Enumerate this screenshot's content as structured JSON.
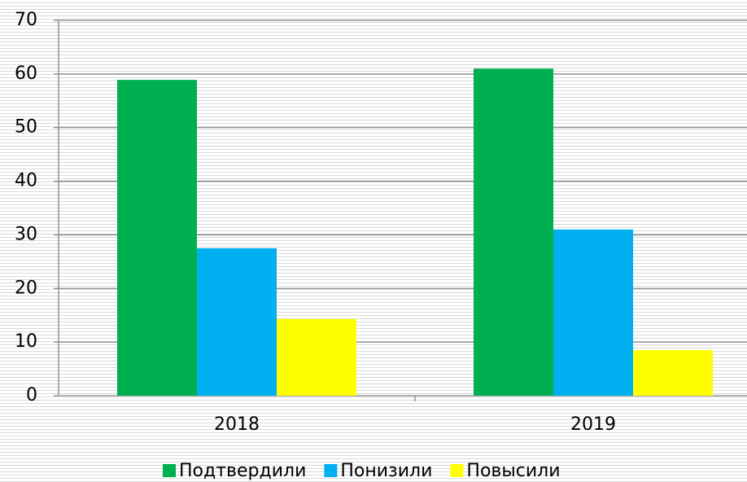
{
  "chart_data": {
    "type": "bar",
    "categories": [
      "2018",
      "2019"
    ],
    "series": [
      {
        "name": "Подтвердили",
        "color": "#00b050",
        "values": [
          58.9,
          61.0
        ]
      },
      {
        "name": "Понизили",
        "color": "#00b0f0",
        "values": [
          27.5,
          31.0
        ]
      },
      {
        "name": "Повысили",
        "color": "#ffff00",
        "values": [
          14.3,
          8.5
        ]
      }
    ],
    "ylim": [
      0,
      70
    ],
    "yticks": [
      0,
      10,
      20,
      30,
      40,
      50,
      60,
      70
    ],
    "grid": true,
    "legend": "bottom"
  }
}
